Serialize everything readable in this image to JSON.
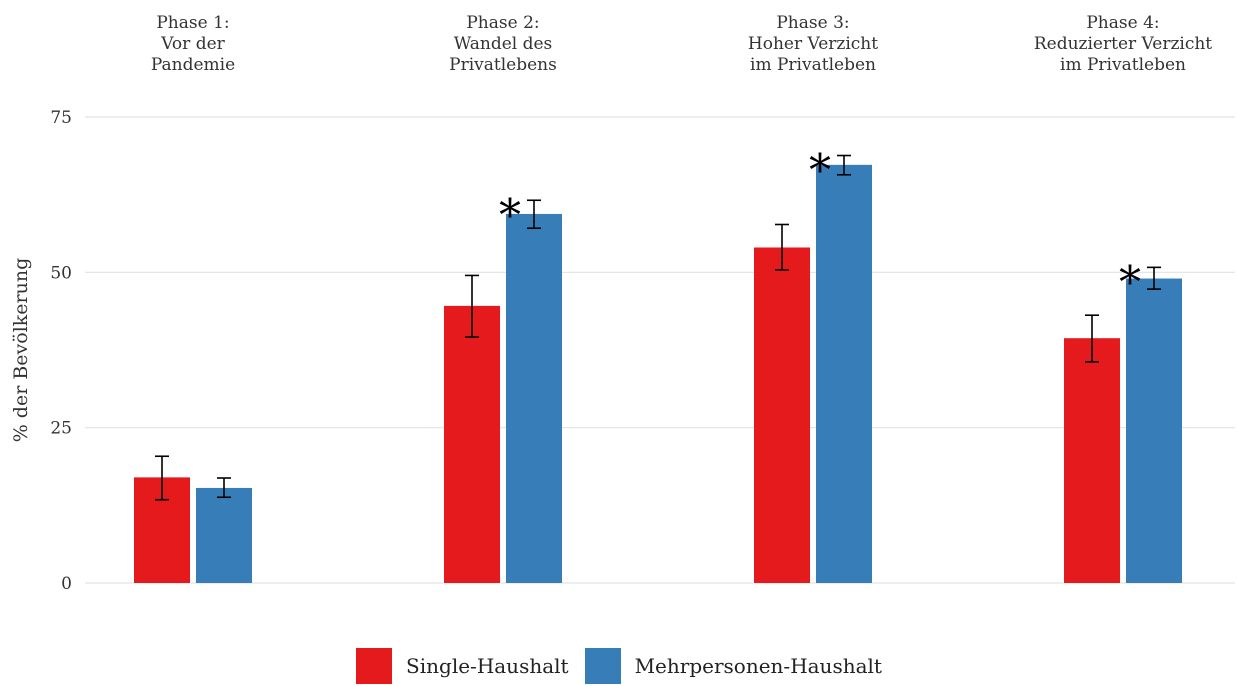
{
  "chart_data": {
    "type": "bar",
    "ylabel": "% der Bevölkerung",
    "ylim": [
      0,
      75
    ],
    "yticks": [
      0,
      25,
      50,
      75
    ],
    "grid": true,
    "legend_position": "bottom",
    "categories": [
      [
        "Phase 1:",
        "Vor der",
        "Pandemie"
      ],
      [
        "Phase 2:",
        "Wandel des",
        "Privatlebens"
      ],
      [
        "Phase 3:",
        "Hoher Verzicht",
        "im Privatleben"
      ],
      [
        "Phase 4:",
        "Reduzierter Verzicht",
        "im Privatleben"
      ]
    ],
    "series": [
      {
        "name": "Single-Haushalt",
        "color": "#e41a1c",
        "values": [
          17.0,
          44.6,
          54.0,
          39.4
        ],
        "err_low": [
          13.4,
          39.6,
          50.4,
          35.6
        ],
        "err_high": [
          20.4,
          49.5,
          57.7,
          43.1
        ]
      },
      {
        "name": "Mehrpersonen-Haushalt",
        "color": "#377eb8",
        "values": [
          15.3,
          59.4,
          67.3,
          49.0
        ],
        "err_low": [
          13.8,
          57.1,
          65.7,
          47.3
        ],
        "err_high": [
          16.9,
          61.6,
          68.8,
          50.8
        ]
      }
    ],
    "significance_markers": [
      "",
      "*",
      "*",
      "*"
    ]
  }
}
